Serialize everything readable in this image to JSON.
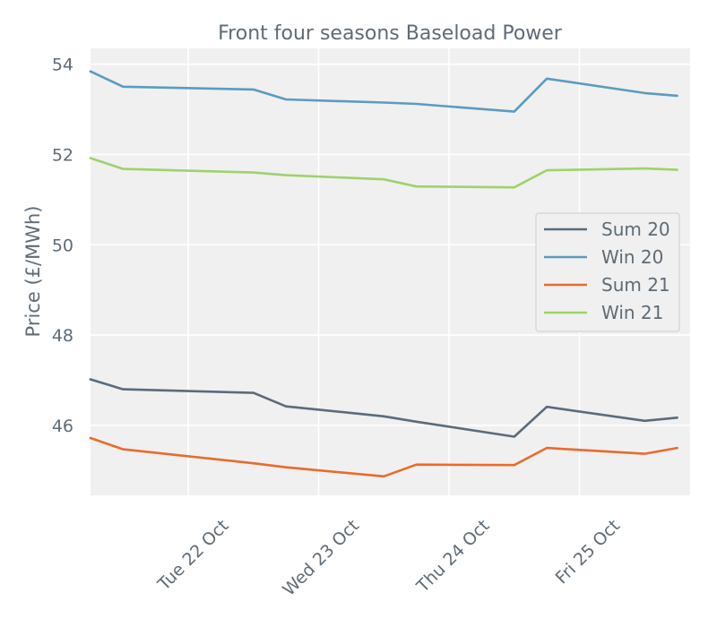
{
  "chart_data": {
    "type": "line",
    "title": "Front four seasons Baseload Power",
    "xlabel": "",
    "ylabel": "Price (£/MWh)",
    "x": [
      "2019-10-21 06:00",
      "2019-10-21 12:00",
      "2019-10-22 12:00",
      "2019-10-22 18:00",
      "2019-10-23 12:00",
      "2019-10-23 18:00",
      "2019-10-24 12:00",
      "2019-10-24 18:00",
      "2019-10-25 12:00",
      "2019-10-25 18:00"
    ],
    "xticks": [
      "Tue 22 Oct",
      "Wed 23 Oct",
      "Thu 24 Oct",
      "Fri 25 Oct"
    ],
    "yticks": [
      46,
      48,
      50,
      52,
      54
    ],
    "ylim": [
      44.45,
      54.35
    ],
    "grid": true,
    "legend_position": "center-right",
    "series": [
      {
        "name": "Sum 20",
        "color": "#5b6b7a",
        "values": [
          47.02,
          46.8,
          46.72,
          46.42,
          46.2,
          46.08,
          45.75,
          46.41,
          46.1,
          46.17
        ]
      },
      {
        "name": "Win 20",
        "color": "#5b9bbf",
        "values": [
          53.84,
          53.5,
          53.44,
          53.22,
          53.15,
          53.12,
          52.95,
          53.68,
          53.36,
          53.3
        ]
      },
      {
        "name": "Sum 21",
        "color": "#ea6a2c",
        "values": [
          45.72,
          45.47,
          45.16,
          45.07,
          44.87,
          45.13,
          45.12,
          45.5,
          45.37,
          45.5
        ]
      },
      {
        "name": "Win 21",
        "color": "#9fd16d",
        "values": [
          51.92,
          51.68,
          51.6,
          51.54,
          51.45,
          51.29,
          51.27,
          51.65,
          51.69,
          51.66
        ]
      }
    ]
  }
}
